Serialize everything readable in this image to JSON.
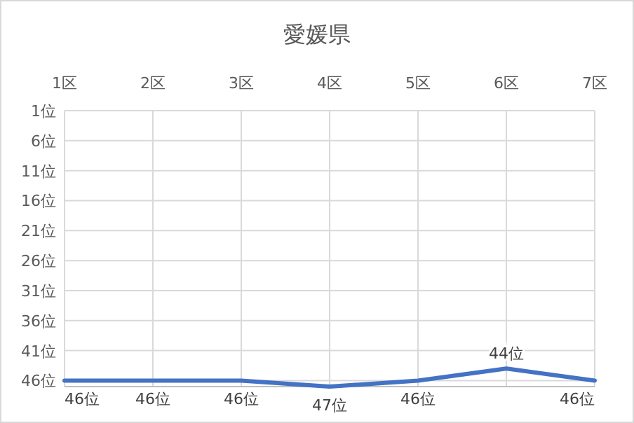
{
  "chart_data": {
    "type": "line",
    "title": "愛媛県",
    "categories": [
      "1区",
      "2区",
      "3区",
      "4区",
      "5区",
      "6区",
      "7区"
    ],
    "values": [
      46,
      46,
      46,
      47,
      46,
      44,
      46
    ],
    "value_labels": [
      "46位",
      "46位",
      "46位",
      "47位",
      "46位",
      "44位",
      "46位"
    ],
    "color": "#4472c4",
    "ylim": [
      47,
      1
    ],
    "yticks": [
      {
        "value": 1,
        "label": "1位"
      },
      {
        "value": 6,
        "label": "6位"
      },
      {
        "value": 11,
        "label": "11位"
      },
      {
        "value": 16,
        "label": "16位"
      },
      {
        "value": 21,
        "label": "21位"
      },
      {
        "value": 26,
        "label": "26位"
      },
      {
        "value": 31,
        "label": "31位"
      },
      {
        "value": 36,
        "label": "36位"
      },
      {
        "value": 41,
        "label": "41位"
      },
      {
        "value": 46,
        "label": "46位"
      }
    ],
    "grid": true
  }
}
